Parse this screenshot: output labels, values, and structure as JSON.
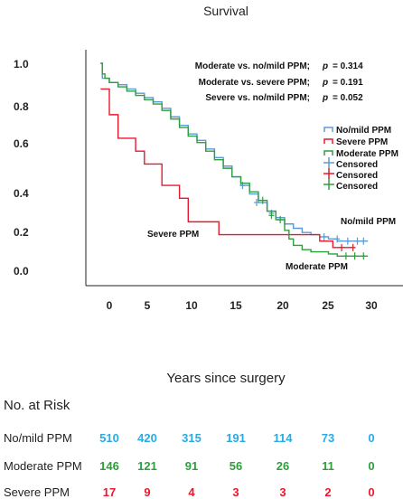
{
  "chart_data": {
    "type": "line",
    "title": "Survival",
    "xlabel": "Years since surgery",
    "ylabel": "",
    "xlim": [
      0,
      30
    ],
    "ylim": [
      0,
      1
    ],
    "x_ticks": [
      "0",
      "5",
      "10",
      "15",
      "20",
      "25",
      "30"
    ],
    "y_ticks": [
      "0.0",
      "0.2",
      "0.4",
      "0.6",
      "0.8",
      "1.0"
    ],
    "grid": false,
    "legend_position": "right",
    "legend_entries": [
      "No/mild PPM",
      "Severe PPM",
      "Moderate PPM",
      "Censored",
      "Censored",
      "Censored"
    ],
    "p_values": [
      {
        "label": "Moderate vs. no/mild PPM;",
        "p": "p",
        "value": "= 0.314"
      },
      {
        "label": "Moderate vs. severe PPM;",
        "p": "p",
        "value": "= 0.191"
      },
      {
        "label": "Severe vs. no/mild PPM;",
        "p": "p",
        "value": "= 0.052"
      }
    ],
    "annotations": {
      "nomild": "No/mild PPM",
      "severe": "Severe PPM",
      "moderate": "Moderate PPM"
    },
    "series": [
      {
        "name": "No/mild PPM",
        "color": "#5b9bd5",
        "steps": [
          [
            -1,
            1.0
          ],
          [
            -0.8,
            0.93
          ],
          [
            0,
            0.91
          ],
          [
            1,
            0.9
          ],
          [
            2,
            0.88
          ],
          [
            3,
            0.86
          ],
          [
            4,
            0.84
          ],
          [
            5,
            0.82
          ],
          [
            6,
            0.79
          ],
          [
            7,
            0.75
          ],
          [
            8,
            0.71
          ],
          [
            9,
            0.67
          ],
          [
            10,
            0.64
          ],
          [
            11,
            0.6
          ],
          [
            12,
            0.56
          ],
          [
            13,
            0.52
          ],
          [
            14,
            0.47
          ],
          [
            15,
            0.43
          ],
          [
            16,
            0.39
          ],
          [
            17,
            0.35
          ],
          [
            18,
            0.31
          ],
          [
            19,
            0.28
          ],
          [
            20,
            0.25
          ],
          [
            21,
            0.23
          ],
          [
            22,
            0.21
          ],
          [
            23,
            0.2
          ],
          [
            24,
            0.19
          ],
          [
            25,
            0.18
          ],
          [
            26,
            0.17
          ],
          [
            27,
            0.17
          ],
          [
            29,
            0.17
          ]
        ],
        "end_x": 29.5,
        "censored": [
          [
            15.2,
            0.43
          ],
          [
            16.8,
            0.35
          ],
          [
            18.5,
            0.3
          ],
          [
            24.5,
            0.19
          ],
          [
            26,
            0.18
          ],
          [
            27.2,
            0.17
          ],
          [
            28.3,
            0.17
          ],
          [
            29,
            0.17
          ]
        ]
      },
      {
        "name": "Severe PPM",
        "color": "#e8192c",
        "steps": [
          [
            -1,
            0.88
          ],
          [
            0,
            0.76
          ],
          [
            1,
            0.65
          ],
          [
            3,
            0.59
          ],
          [
            4,
            0.53
          ],
          [
            6,
            0.43
          ],
          [
            8,
            0.37
          ],
          [
            9,
            0.26
          ],
          [
            12.5,
            0.2
          ],
          [
            24,
            0.17
          ],
          [
            25.5,
            0.14
          ]
        ],
        "end_x": 28.0,
        "censored": [
          [
            26.5,
            0.14
          ],
          [
            27.8,
            0.14
          ]
        ]
      },
      {
        "name": "Moderate PPM",
        "color": "#2e9e3e",
        "steps": [
          [
            -1,
            1.0
          ],
          [
            -0.8,
            0.95
          ],
          [
            -0.5,
            0.93
          ],
          [
            0,
            0.91
          ],
          [
            1,
            0.89
          ],
          [
            2,
            0.87
          ],
          [
            3,
            0.85
          ],
          [
            4,
            0.83
          ],
          [
            5,
            0.81
          ],
          [
            6,
            0.78
          ],
          [
            7,
            0.74
          ],
          [
            8,
            0.7
          ],
          [
            9,
            0.66
          ],
          [
            10,
            0.63
          ],
          [
            11,
            0.59
          ],
          [
            12,
            0.55
          ],
          [
            13,
            0.51
          ],
          [
            14,
            0.47
          ],
          [
            15,
            0.44
          ],
          [
            16,
            0.4
          ],
          [
            17,
            0.36
          ],
          [
            18,
            0.31
          ],
          [
            19,
            0.27
          ],
          [
            20,
            0.22
          ],
          [
            20.5,
            0.18
          ],
          [
            21,
            0.15
          ],
          [
            22,
            0.13
          ],
          [
            23,
            0.12
          ],
          [
            25,
            0.11
          ],
          [
            26,
            0.1
          ],
          [
            27.5,
            0.1
          ]
        ],
        "end_x": 29.5,
        "censored": [
          [
            17.5,
            0.36
          ],
          [
            18.5,
            0.29
          ],
          [
            19.5,
            0.27
          ],
          [
            27,
            0.1
          ],
          [
            28,
            0.1
          ],
          [
            29,
            0.1
          ]
        ]
      }
    ]
  },
  "risk_table": {
    "title": "No. at Risk",
    "rows": [
      {
        "label": "No/mild PPM",
        "color": "#29abe2",
        "values": [
          "510",
          "420",
          "315",
          "191",
          "114",
          "73",
          "0"
        ]
      },
      {
        "label": "Moderate PPM",
        "color": "#2e9e3e",
        "values": [
          "146",
          "121",
          "91",
          "56",
          "26",
          "11",
          "0"
        ]
      },
      {
        "label": "Severe PPM",
        "color": "#e8192c",
        "values": [
          "17",
          "9",
          "4",
          "3",
          "3",
          "2",
          "0"
        ]
      }
    ]
  }
}
